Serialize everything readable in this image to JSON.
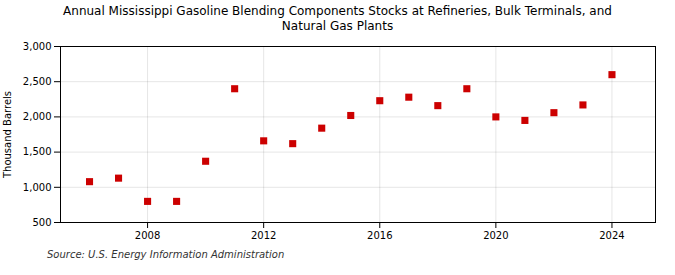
{
  "chart_data": {
    "type": "scatter",
    "title": "Annual Mississippi Gasoline Blending Components Stocks at Refineries, Bulk Terminals, and\nNatural Gas Plants",
    "ylabel": "Thousand Barrels",
    "source": "Source: U.S. Energy Information Administration",
    "x": [
      2006,
      2007,
      2008,
      2009,
      2010,
      2011,
      2012,
      2013,
      2014,
      2015,
      2016,
      2017,
      2018,
      2019,
      2020,
      2021,
      2022,
      2023,
      2024
    ],
    "values": [
      1080,
      1130,
      800,
      800,
      1370,
      2400,
      1660,
      1620,
      1840,
      2020,
      2230,
      2280,
      2160,
      2400,
      2000,
      1950,
      2060,
      2170,
      2600
    ],
    "color": "#cc0000",
    "marker": "square",
    "xlim": [
      2005.0,
      2025.5
    ],
    "xticks": [
      2008,
      2012,
      2016,
      2020,
      2024
    ],
    "ylim": [
      500,
      3000
    ],
    "yticks": [
      500,
      {
        "value": 1000,
        "label": "1,000"
      },
      {
        "value": 1500,
        "label": "1,500"
      },
      {
        "value": 2000,
        "label": "2,000"
      },
      {
        "value": 2500,
        "label": "2,500"
      },
      {
        "value": 3000,
        "label": "3,000"
      }
    ],
    "grid": true
  }
}
